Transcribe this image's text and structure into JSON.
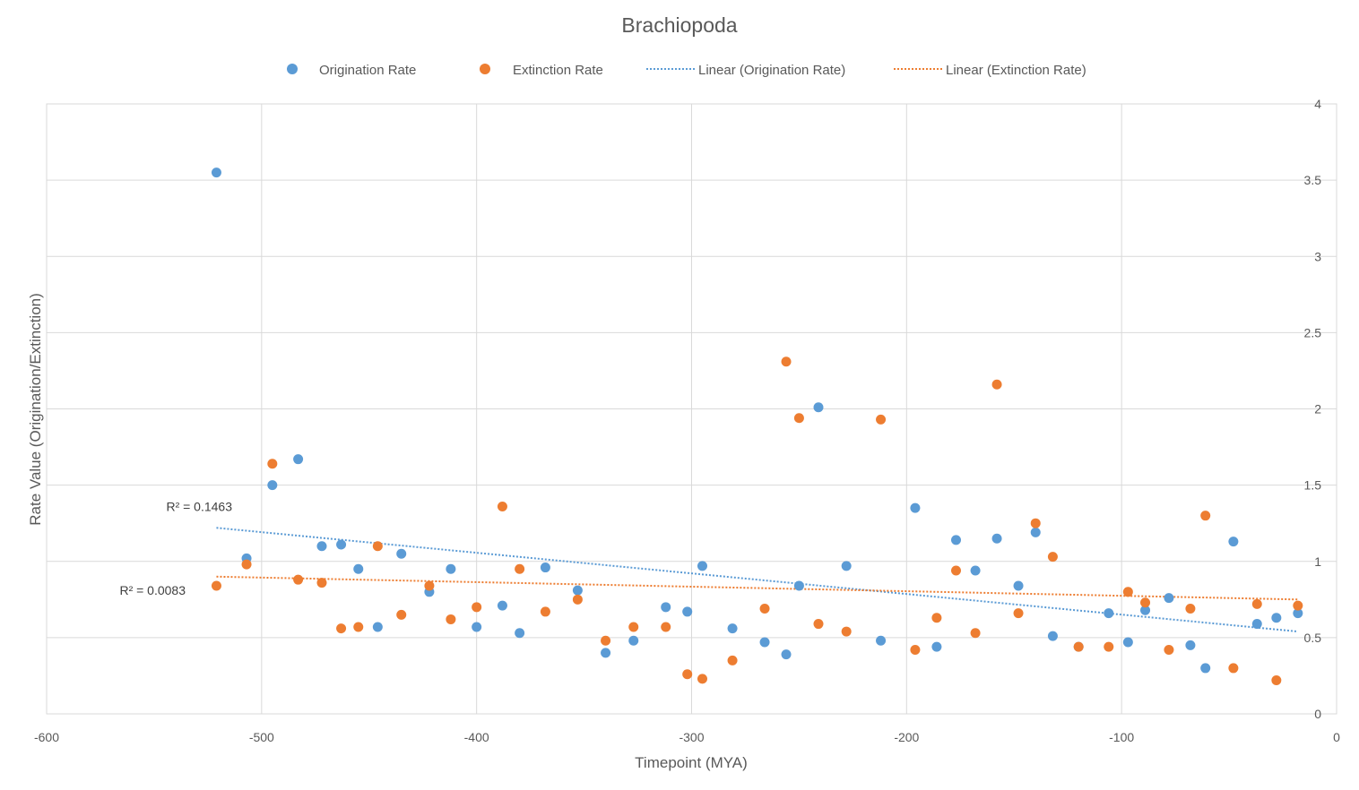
{
  "chart_data": {
    "type": "scatter",
    "title": "Brachiopoda",
    "xlabel": "Timepoint (MYA)",
    "ylabel": "Rate Value (Origination/Extinction)",
    "xlim": [
      -600,
      0
    ],
    "ylim": [
      0,
      4
    ],
    "x_ticks": [
      -600,
      -500,
      -400,
      -300,
      -200,
      -100,
      0
    ],
    "y_ticks": [
      0,
      0.5,
      1,
      1.5,
      2,
      2.5,
      3,
      3.5,
      4
    ],
    "y_axis_side": "right",
    "grid": true,
    "legend_position": "top",
    "series": [
      {
        "name": "Origination Rate",
        "color": "#5B9BD5",
        "points": [
          [
            -521,
            3.55
          ],
          [
            -507,
            1.02
          ],
          [
            -495,
            1.5
          ],
          [
            -483,
            1.67
          ],
          [
            -472,
            1.1
          ],
          [
            -463,
            1.11
          ],
          [
            -455,
            0.95
          ],
          [
            -446,
            0.57
          ],
          [
            -435,
            1.05
          ],
          [
            -422,
            0.8
          ],
          [
            -412,
            0.95
          ],
          [
            -400,
            0.57
          ],
          [
            -388,
            0.71
          ],
          [
            -380,
            0.53
          ],
          [
            -368,
            0.96
          ],
          [
            -353,
            0.81
          ],
          [
            -340,
            0.4
          ],
          [
            -327,
            0.48
          ],
          [
            -312,
            0.7
          ],
          [
            -302,
            0.67
          ],
          [
            -295,
            0.97
          ],
          [
            -281,
            0.56
          ],
          [
            -266,
            0.47
          ],
          [
            -256,
            0.39
          ],
          [
            -250,
            0.84
          ],
          [
            -241,
            2.01
          ],
          [
            -228,
            0.97
          ],
          [
            -212,
            0.48
          ],
          [
            -196,
            1.35
          ],
          [
            -186,
            0.44
          ],
          [
            -177,
            1.14
          ],
          [
            -168,
            0.94
          ],
          [
            -158,
            1.15
          ],
          [
            -148,
            0.84
          ],
          [
            -140,
            1.19
          ],
          [
            -132,
            0.51
          ],
          [
            -120,
            0.44
          ],
          [
            -106,
            0.66
          ],
          [
            -97,
            0.47
          ],
          [
            -89,
            0.68
          ],
          [
            -78,
            0.76
          ],
          [
            -68,
            0.45
          ],
          [
            -61,
            0.3
          ],
          [
            -48,
            1.13
          ],
          [
            -37,
            0.59
          ],
          [
            -28,
            0.63
          ],
          [
            -18,
            0.66
          ]
        ],
        "trendline": {
          "name": "Linear (Origination Rate)",
          "r2_label": "R² = 0.1463",
          "start": [
            -521,
            1.22
          ],
          "end": [
            -18,
            0.54
          ]
        }
      },
      {
        "name": "Extinction Rate",
        "color": "#ED7D31",
        "points": [
          [
            -521,
            0.84
          ],
          [
            -507,
            0.98
          ],
          [
            -495,
            1.64
          ],
          [
            -483,
            0.88
          ],
          [
            -472,
            0.86
          ],
          [
            -463,
            0.56
          ],
          [
            -455,
            0.57
          ],
          [
            -446,
            1.1
          ],
          [
            -435,
            0.65
          ],
          [
            -422,
            0.84
          ],
          [
            -412,
            0.62
          ],
          [
            -400,
            0.7
          ],
          [
            -388,
            1.36
          ],
          [
            -380,
            0.95
          ],
          [
            -368,
            0.67
          ],
          [
            -353,
            0.75
          ],
          [
            -340,
            0.48
          ],
          [
            -327,
            0.57
          ],
          [
            -312,
            0.57
          ],
          [
            -302,
            0.26
          ],
          [
            -295,
            0.23
          ],
          [
            -281,
            0.35
          ],
          [
            -266,
            0.69
          ],
          [
            -256,
            2.31
          ],
          [
            -250,
            1.94
          ],
          [
            -241,
            0.59
          ],
          [
            -228,
            0.54
          ],
          [
            -212,
            1.93
          ],
          [
            -196,
            0.42
          ],
          [
            -186,
            0.63
          ],
          [
            -177,
            0.94
          ],
          [
            -168,
            0.53
          ],
          [
            -158,
            2.16
          ],
          [
            -148,
            0.66
          ],
          [
            -140,
            1.25
          ],
          [
            -132,
            1.03
          ],
          [
            -120,
            0.44
          ],
          [
            -106,
            0.44
          ],
          [
            -97,
            0.8
          ],
          [
            -89,
            0.73
          ],
          [
            -78,
            0.42
          ],
          [
            -68,
            0.69
          ],
          [
            -61,
            1.3
          ],
          [
            -48,
            0.3
          ],
          [
            -37,
            0.72
          ],
          [
            -28,
            0.22
          ],
          [
            -18,
            0.71
          ]
        ],
        "trendline": {
          "name": "Linear (Extinction Rate)",
          "r2_label": "R² = 0.0083",
          "start": [
            -521,
            0.9
          ],
          "end": [
            -18,
            0.75
          ]
        }
      }
    ]
  }
}
